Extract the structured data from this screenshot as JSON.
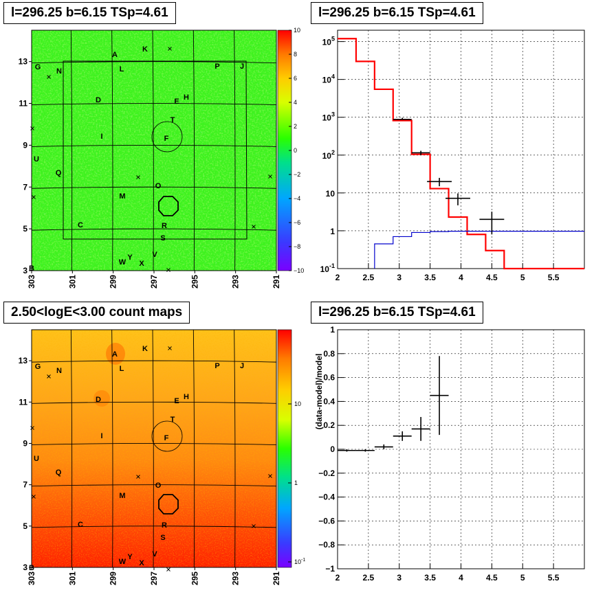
{
  "panels": {
    "tl_title": "l=296.25 b=6.15 TSp=4.61",
    "tr_title": "l=296.25 b=6.15 TSp=4.61",
    "bl_title": "2.50<logE<3.00 count maps",
    "br_title": "l=296.25 b=6.15 TSp=4.61"
  },
  "chart_data": [
    {
      "type": "heatmap",
      "id": "residual-map",
      "xticks": [
        "303",
        "301",
        "299",
        "297",
        "295",
        "293",
        "291"
      ],
      "yticks": [
        "3",
        "5",
        "7",
        "9",
        "11",
        "13"
      ],
      "x_range": [
        303,
        291
      ],
      "y_range": [
        3,
        14.5
      ],
      "colorbar": {
        "min": -10,
        "max": 10,
        "ticks": [
          "10",
          "8",
          "6",
          "4",
          "2",
          "0",
          "−2",
          "−4",
          "−6",
          "−8",
          "−10"
        ]
      },
      "sources": [
        "A",
        "K",
        "G",
        "N",
        "L",
        "P",
        "J",
        "D",
        "E",
        "H",
        "T",
        "I",
        "F",
        "U",
        "Q",
        "O",
        "M",
        "C",
        "R",
        "S",
        "V",
        "W",
        "Y",
        "X",
        "B"
      ]
    },
    {
      "type": "line",
      "id": "spectrum",
      "x_range": [
        2,
        6
      ],
      "y_log": true,
      "y_range": [
        0.1,
        200000
      ],
      "xticks": [
        "2",
        "2.5",
        "3",
        "3.5",
        "4",
        "4.5",
        "5",
        "5.5"
      ],
      "yticks": [
        "10^-1",
        "1",
        "10",
        "10^2",
        "10^3",
        "10^4",
        "10^5"
      ],
      "series": [
        {
          "color": "#ff0000",
          "steps": [
            [
              2,
              2.3,
              120000
            ],
            [
              2.3,
              2.6,
              30000
            ],
            [
              2.6,
              2.9,
              5500
            ],
            [
              2.9,
              3.2,
              820
            ],
            [
              3.2,
              3.5,
              105
            ],
            [
              3.5,
              3.8,
              13
            ],
            [
              3.8,
              4.1,
              2.3
            ],
            [
              4.1,
              4.4,
              0.8
            ],
            [
              4.4,
              4.7,
              0.3
            ],
            [
              4.7,
              6,
              0.1
            ]
          ]
        },
        {
          "color": "#0000cc",
          "steps": [
            [
              2.6,
              2.9,
              0.45
            ],
            [
              2.9,
              3.2,
              0.7
            ],
            [
              3.2,
              3.5,
              0.9
            ],
            [
              3.5,
              3.8,
              0.95
            ],
            [
              3.8,
              6,
              0.97
            ]
          ]
        },
        {
          "color": "#000000",
          "points": [
            [
              3.05,
              880,
              3000,
              0
            ],
            [
              3.35,
              115,
              7000,
              15
            ],
            [
              3.65,
              20,
              6000,
              5
            ],
            [
              3.95,
              7.2,
              5500,
              2.5
            ],
            [
              4.5,
              2.0,
              5500,
              1.2
            ]
          ]
        }
      ]
    },
    {
      "type": "heatmap",
      "id": "count-map",
      "xticks": [
        "303",
        "301",
        "299",
        "297",
        "295",
        "293",
        "291"
      ],
      "yticks": [
        "3",
        "5",
        "7",
        "9",
        "11",
        "13"
      ],
      "x_range": [
        303,
        291
      ],
      "y_range": [
        3,
        14.5
      ],
      "colorbar": {
        "log": true,
        "ticks": [
          "10",
          "1",
          "10^-1"
        ]
      },
      "sources": [
        "A",
        "K",
        "G",
        "N",
        "L",
        "P",
        "J",
        "D",
        "E",
        "H",
        "T",
        "I",
        "F",
        "U",
        "Q",
        "O",
        "M",
        "C",
        "R",
        "S",
        "V",
        "W",
        "Y",
        "X",
        "B"
      ]
    },
    {
      "type": "scatter",
      "id": "residuals",
      "ylabel": "(data-model)/model",
      "x_range": [
        2,
        6
      ],
      "y_range": [
        -1,
        1
      ],
      "xticks": [
        "2",
        "2.5",
        "3",
        "3.5",
        "4",
        "4.5",
        "5",
        "5.5"
      ],
      "yticks": [
        "−1",
        "−0.8",
        "−0.6",
        "−0.4",
        "−0.2",
        "0",
        "0.2",
        "0.4",
        "0.6",
        "0.8",
        "1"
      ],
      "points": [
        {
          "x": 2.15,
          "y": -0.01,
          "xerr": 0.15,
          "yerr": 0.01
        },
        {
          "x": 2.45,
          "y": -0.01,
          "xerr": 0.15,
          "yerr": 0.01
        },
        {
          "x": 2.75,
          "y": 0.02,
          "xerr": 0.15,
          "yerr": 0.02
        },
        {
          "x": 3.05,
          "y": 0.11,
          "xerr": 0.15,
          "yerr": 0.04
        },
        {
          "x": 3.35,
          "y": 0.17,
          "xerr": 0.15,
          "yerr": 0.1
        },
        {
          "x": 3.65,
          "y": 0.45,
          "xerr": 0.15,
          "yerr": 0.33
        }
      ]
    }
  ]
}
